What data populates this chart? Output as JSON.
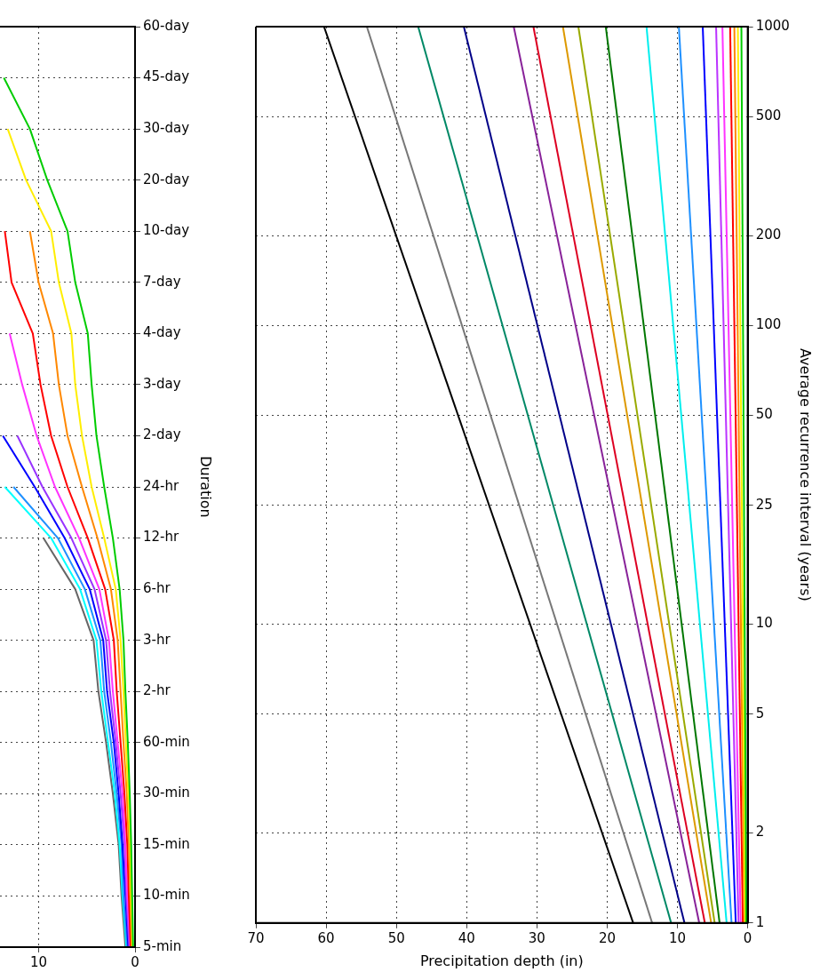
{
  "chart_data": [
    {
      "type": "line",
      "orientation": "horizontal",
      "ylabel": "Duration",
      "grid": true,
      "legend": false,
      "marker": "none",
      "line_style": "solid",
      "categories": [
        "60-day",
        "45-day",
        "30-day",
        "20-day",
        "10-day",
        "7-day",
        "4-day",
        "3-day",
        "2-day",
        "24-hr",
        "12-hr",
        "6-hr",
        "3-hr",
        "2-hr",
        "60-min",
        "30-min",
        "15-min",
        "10-min",
        "5-min"
      ],
      "xlim": [
        14,
        0
      ],
      "xticks": [
        10,
        0
      ],
      "series": [
        {
          "color": "#00cc00",
          "values": [
            null,
            13.6,
            10.9,
            9.1,
            7.0,
            6.2,
            4.9,
            4.5,
            4.0,
            3.2,
            2.3,
            1.6,
            1.2,
            1.0,
            0.75,
            0.55,
            0.4,
            0.3,
            0.2
          ]
        },
        {
          "color": "#ffee00",
          "values": [
            null,
            null,
            13.2,
            11.3,
            8.7,
            7.9,
            6.6,
            6.2,
            5.5,
            4.5,
            3.2,
            2.0,
            1.5,
            1.2,
            0.95,
            0.7,
            0.5,
            0.4,
            0.25
          ]
        },
        {
          "color": "#ff8800",
          "values": [
            null,
            null,
            null,
            null,
            10.9,
            10.0,
            8.5,
            7.9,
            7.0,
            5.5,
            3.9,
            2.5,
            1.8,
            1.5,
            1.2,
            0.85,
            0.65,
            0.5,
            0.35
          ]
        },
        {
          "color": "#ff0000",
          "values": [
            null,
            null,
            null,
            null,
            13.5,
            12.8,
            10.6,
            9.8,
            8.7,
            7.0,
            4.9,
            3.1,
            2.2,
            1.9,
            1.5,
            1.1,
            0.8,
            0.65,
            0.45
          ]
        },
        {
          "color": "#ff33ff",
          "values": [
            null,
            null,
            null,
            null,
            null,
            null,
            13.0,
            11.7,
            10.2,
            8.3,
            5.8,
            3.7,
            2.7,
            2.3,
            1.8,
            1.3,
            1.0,
            0.8,
            0.5
          ]
        },
        {
          "color": "#9933ff",
          "values": [
            null,
            null,
            null,
            null,
            null,
            null,
            null,
            null,
            12.2,
            9.6,
            6.6,
            4.2,
            3.0,
            2.6,
            2.0,
            1.5,
            1.1,
            0.9,
            0.6
          ]
        },
        {
          "color": "#0000ff",
          "values": [
            null,
            null,
            null,
            null,
            null,
            null,
            null,
            null,
            13.7,
            10.4,
            7.3,
            4.7,
            3.3,
            2.9,
            2.2,
            1.7,
            1.3,
            1.0,
            0.7
          ]
        },
        {
          "color": "#1e90ff",
          "values": [
            null,
            null,
            null,
            null,
            null,
            null,
            null,
            null,
            null,
            12.6,
            8.0,
            5.2,
            3.6,
            3.2,
            2.5,
            1.9,
            1.4,
            1.2,
            0.8
          ]
        },
        {
          "color": "#00ffff",
          "values": [
            null,
            null,
            null,
            null,
            null,
            null,
            null,
            null,
            null,
            13.5,
            8.7,
            5.7,
            4.0,
            3.5,
            2.8,
            2.1,
            1.6,
            1.3,
            0.9
          ]
        },
        {
          "color": "#666666",
          "values": [
            null,
            null,
            null,
            null,
            null,
            null,
            null,
            null,
            null,
            null,
            9.5,
            6.2,
            4.3,
            3.8,
            3.0,
            2.3,
            1.7,
            1.4,
            1.0
          ]
        }
      ]
    },
    {
      "type": "line",
      "xlabel": "Precipitation depth (in)",
      "ylabel": "Average recurrence interval (years)",
      "log": "y",
      "grid": true,
      "legend": false,
      "marker": "none",
      "line_style": "solid",
      "xlim": [
        70,
        0
      ],
      "xticks": [
        70,
        60,
        50,
        40,
        30,
        20,
        10,
        0
      ],
      "ylim": [
        1,
        1000
      ],
      "yticks": [
        1,
        2,
        5,
        10,
        25,
        50,
        100,
        200,
        500,
        1000
      ],
      "series": [
        {
          "color": "#00cc00",
          "x": [
            0.2,
            0.9
          ],
          "values": [
            1,
            1000
          ]
        },
        {
          "color": "#ffee00",
          "x": [
            0.35,
            1.4
          ],
          "values": [
            1,
            1000
          ]
        },
        {
          "color": "#ff8800",
          "x": [
            0.5,
            1.9
          ],
          "values": [
            1,
            1000
          ]
        },
        {
          "color": "#ff0000",
          "x": [
            0.7,
            2.5
          ],
          "values": [
            1,
            1000
          ]
        },
        {
          "color": "#ff33ff",
          "x": [
            1.0,
            3.6
          ],
          "values": [
            1,
            1000
          ]
        },
        {
          "color": "#bb33ff",
          "x": [
            1.3,
            4.5
          ],
          "values": [
            1,
            1000
          ]
        },
        {
          "color": "#0000ff",
          "x": [
            1.7,
            6.4
          ],
          "values": [
            1,
            1000
          ]
        },
        {
          "color": "#1e90ff",
          "x": [
            2.3,
            9.8
          ],
          "values": [
            1,
            1000
          ]
        },
        {
          "color": "#00eeee",
          "x": [
            3.0,
            14.4
          ],
          "values": [
            1,
            1000
          ]
        },
        {
          "color": "#007700",
          "x": [
            4.0,
            20.2
          ],
          "values": [
            1,
            1000
          ]
        },
        {
          "color": "#99aa00",
          "x": [
            4.7,
            24.1
          ],
          "values": [
            1,
            1000
          ]
        },
        {
          "color": "#dd9900",
          "x": [
            5.2,
            26.3
          ],
          "values": [
            1,
            1000
          ]
        },
        {
          "color": "#dd0022",
          "x": [
            6.1,
            30.5
          ],
          "values": [
            1,
            1000
          ]
        },
        {
          "color": "#882299",
          "x": [
            6.9,
            33.3
          ],
          "values": [
            1,
            1000
          ]
        },
        {
          "color": "#000088",
          "x": [
            9.0,
            40.4
          ],
          "values": [
            1,
            1000
          ]
        },
        {
          "color": "#008866",
          "x": [
            10.9,
            46.9
          ],
          "values": [
            1,
            1000
          ]
        },
        {
          "color": "#777777",
          "x": [
            13.6,
            54.2
          ],
          "values": [
            1,
            1000
          ]
        },
        {
          "color": "#000000",
          "x": [
            16.3,
            60.3
          ],
          "values": [
            1,
            1000
          ]
        }
      ]
    }
  ]
}
